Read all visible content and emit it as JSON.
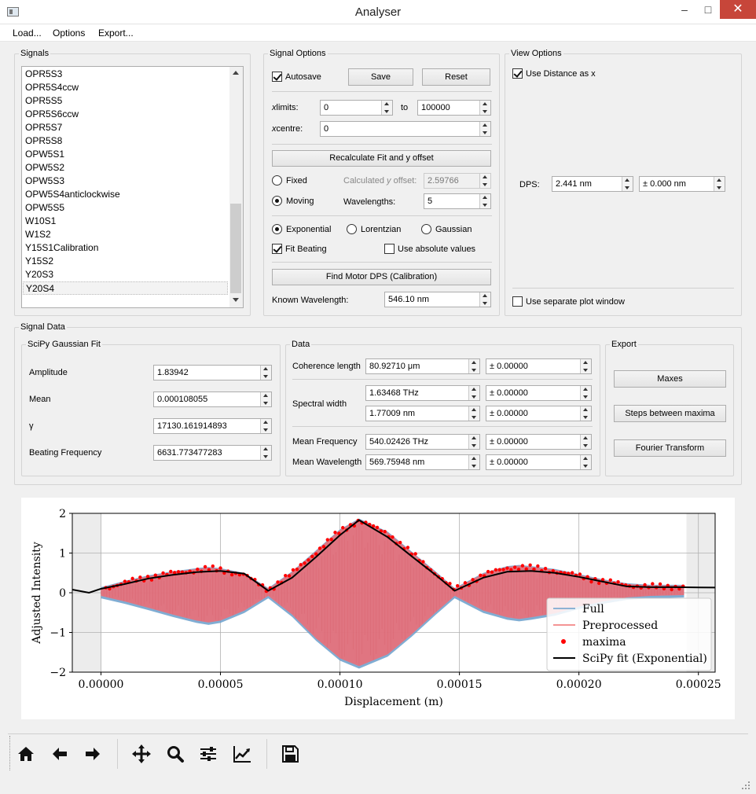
{
  "window": {
    "title": "Analyser",
    "minimize": "‒",
    "maximize": "□",
    "close": "✕"
  },
  "menu": [
    "Load...",
    "Options",
    "Export..."
  ],
  "signals": {
    "title": "Signals",
    "items": [
      "OPR5S3",
      "OPR5S4ccw",
      "OPR5S5",
      "OPR5S6ccw",
      "OPR5S7",
      "OPR5S8",
      "OPW5S1",
      "OPW5S2",
      "OPW5S3",
      "OPW5S4anticlockwise",
      "OPW5S5",
      "W10S1",
      "W1S2",
      "Y15S1Calibration",
      "Y15S2",
      "Y20S3",
      "Y20S4"
    ],
    "selected": "Y20S4"
  },
  "signal_options": {
    "title": "Signal Options",
    "autosave_label": "Autosave",
    "save_label": "Save",
    "reset_label": "Reset",
    "xlimits_label": "limits:",
    "xcentre_label": "centre:",
    "x_symbol": "x",
    "xlim_min": "0",
    "to_label": "to",
    "xlim_max": "100000",
    "xcentre": "0",
    "recalc_label": "Recalculate Fit and y offset",
    "fixed_label": "Fixed",
    "calc_offset_label_pre": "Calculated ",
    "calc_offset_label_y": "y",
    "calc_offset_label_post": " offset:",
    "calc_offset_value": "2.59766",
    "moving_label": "Moving",
    "wavelengths_label": "Wavelengths:",
    "wavelengths_value": "5",
    "exponential_label": "Exponential",
    "lorentzian_label": "Lorentzian",
    "gaussian_label": "Gaussian",
    "fit_beating_label": "Fit Beating",
    "abs_values_label": "Use absolute values",
    "find_motor_label": "Find Motor DPS (Calibration)",
    "known_wl_label": "Known Wavelength:",
    "known_wl_value": "546.10 nm"
  },
  "view_options": {
    "title": "View Options",
    "use_distance_label": "Use Distance as x",
    "dps_label": "DPS:",
    "dps_value": "2.441 nm",
    "dps_err": "± 0.000 nm",
    "separate_window_label": "Use separate plot window"
  },
  "signal_data": {
    "title": "Signal Data",
    "scipy": {
      "title": "SciPy Gaussian Fit",
      "amplitude_label": "Amplitude",
      "amplitude": "1.83942",
      "mean_label": "Mean",
      "mean": "0.000108055",
      "gamma_label": "γ",
      "gamma": "17130.161914893",
      "beat_label": "Beating Frequency",
      "beat": "6631.773477283"
    },
    "data": {
      "title": "Data",
      "coh_label": "Coherence length",
      "coh": "80.92710 μm",
      "coh_err": "± 0.00000",
      "spec_label": "Spectral width",
      "spec_thz": "1.63468 THz",
      "spec_thz_err": "± 0.00000",
      "spec_nm": "1.77009 nm",
      "spec_nm_err": "± 0.00000",
      "mf_label": "Mean Frequency",
      "mf": "540.02426 THz",
      "mf_err": "± 0.00000",
      "mw_label": "Mean Wavelength",
      "mw": "569.75948 nm",
      "mw_err": "± 0.00000"
    },
    "export": {
      "title": "Export",
      "maxes_label": "Maxes",
      "steps_label": "Steps between maxima",
      "fourier_label": "Fourier Transform"
    }
  },
  "chart_data": {
    "type": "line",
    "xlabel": "Displacement (m)",
    "ylabel": "Adjusted Intensity",
    "xlim": [
      -1.2e-05,
      0.000257
    ],
    "ylim": [
      -2,
      2
    ],
    "x_ticks": [
      "0.00000",
      "0.00005",
      "0.00010",
      "0.00015",
      "0.00020",
      "0.00025"
    ],
    "x_tick_values": [
      0,
      5e-05,
      0.0001,
      0.00015,
      0.0002,
      0.00025
    ],
    "y_ticks": [
      "−2",
      "−1",
      "0",
      "1",
      "2"
    ],
    "y_tick_values": [
      -2,
      -1,
      0,
      1,
      2
    ],
    "grid": true,
    "legend_position": "lower-right",
    "shaded_regions": [
      [
        -1.2e-05,
        0
      ],
      [
        0.000245,
        0.000257
      ]
    ],
    "series": [
      {
        "name": "Full",
        "color": "#6a9fcb"
      },
      {
        "name": "Preprocessed",
        "color": "#f07070"
      },
      {
        "name": "maxima",
        "color": "#ff0000"
      },
      {
        "name": "SciPy fit (Exponential)",
        "color": "#000000"
      }
    ],
    "fit_curve": {
      "x": [
        -1.2e-05,
        -5e-06,
        0,
        1e-05,
        2e-05,
        3e-05,
        4e-05,
        5e-05,
        6e-05,
        7e-05,
        8e-05,
        9e-05,
        0.0001,
        0.000108,
        0.00012,
        0.00013,
        0.00014,
        0.000148,
        0.00016,
        0.00017,
        0.00018,
        0.00019,
        0.0002,
        0.00021,
        0.00022,
        0.00023,
        0.00024,
        0.000257
      ],
      "y": [
        0.08,
        0.0,
        0.1,
        0.22,
        0.36,
        0.45,
        0.52,
        0.55,
        0.48,
        0.05,
        0.38,
        0.9,
        1.45,
        1.83,
        1.4,
        0.92,
        0.45,
        0.05,
        0.38,
        0.53,
        0.55,
        0.5,
        0.4,
        0.28,
        0.16,
        0.14,
        0.14,
        0.13
      ]
    },
    "envelope_upper": {
      "x": [
        0,
        1e-05,
        2e-05,
        3e-05,
        4e-05,
        4.5e-05,
        5e-05,
        6e-05,
        7e-05,
        8e-05,
        9e-05,
        0.0001,
        0.000108,
        0.00012,
        0.00013,
        0.00014,
        0.000148,
        0.00016,
        0.00017,
        0.000175,
        0.00018,
        0.00019,
        0.0002,
        0.00021,
        0.00022,
        0.00023,
        0.000244
      ],
      "y": [
        0.12,
        0.28,
        0.42,
        0.52,
        0.6,
        0.63,
        0.6,
        0.48,
        0.1,
        0.52,
        1.05,
        1.58,
        1.85,
        1.52,
        1.02,
        0.52,
        0.1,
        0.48,
        0.65,
        0.68,
        0.65,
        0.58,
        0.45,
        0.32,
        0.22,
        0.18,
        0.18
      ]
    },
    "envelope_lower": {
      "x": [
        0,
        1e-05,
        2e-05,
        3e-05,
        4e-05,
        4.5e-05,
        5e-05,
        6e-05,
        7e-05,
        8e-05,
        9e-05,
        0.0001,
        0.000108,
        0.00012,
        0.00013,
        0.00014,
        0.000148,
        0.00016,
        0.00017,
        0.000175,
        0.00018,
        0.00019,
        0.0002,
        0.00021,
        0.00022,
        0.00023,
        0.000244
      ],
      "y": [
        -0.08,
        -0.22,
        -0.38,
        -0.55,
        -0.7,
        -0.75,
        -0.7,
        -0.45,
        -0.08,
        -0.55,
        -1.15,
        -1.65,
        -1.85,
        -1.55,
        -1.05,
        -0.5,
        -0.08,
        -0.45,
        -0.62,
        -0.66,
        -0.62,
        -0.52,
        -0.35,
        -0.22,
        -0.12,
        -0.08,
        -0.06
      ]
    }
  },
  "toolbar": {
    "home": "Home",
    "back": "Back",
    "forward": "Forward",
    "pan": "Pan",
    "zoom": "Zoom",
    "subplots": "Subplots",
    "customize": "Customize",
    "save": "Save"
  }
}
